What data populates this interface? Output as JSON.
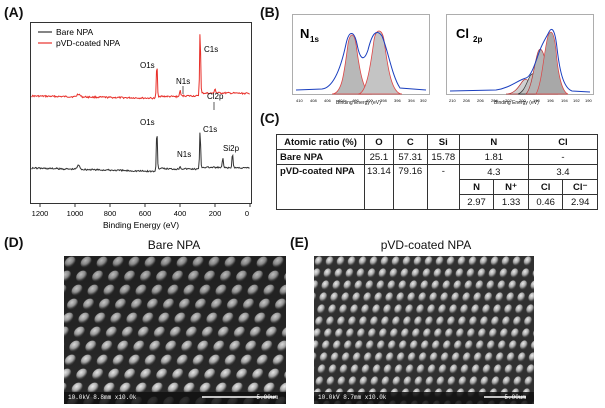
{
  "panels": {
    "a": "(A)",
    "b": "(B)",
    "c": "(C)",
    "d": "(D)",
    "e": "(E)"
  },
  "xps_survey": {
    "legend": [
      "Bare NPA",
      "pVD-coated NPA"
    ],
    "xlabel": "Binding Energy (eV)",
    "ticks": [
      "1200",
      "1000",
      "800",
      "600",
      "400",
      "200",
      "0"
    ],
    "red_peaks": [
      "O1s",
      "N1s",
      "C1s",
      "Cl2p"
    ],
    "black_peaks": [
      "O1s",
      "N1s",
      "C1s",
      "Si2p"
    ],
    "colors": {
      "bare": "#333333",
      "coated": "#e8302a"
    }
  },
  "chart_data": [
    {
      "type": "line",
      "title": "",
      "xlabel": "Binding Energy (eV)",
      "ylabel": "",
      "xlim": [
        1250,
        0
      ],
      "series": [
        {
          "name": "pVD-coated NPA",
          "peaks": {
            "O1s": 532,
            "N1s": 400,
            "C1s": 285,
            "Cl2p": 200
          }
        },
        {
          "name": "Bare NPA",
          "peaks": {
            "O1s": 532,
            "N1s": 400,
            "C1s": 285,
            "Si2p": 100
          }
        }
      ]
    },
    {
      "type": "line",
      "title": "N1s",
      "xlabel": "Binding Energy (eV)",
      "xlim": [
        410,
        392
      ],
      "ticks": [
        "410",
        "408",
        "406",
        "404",
        "402",
        "400",
        "398",
        "396",
        "394",
        "392"
      ],
      "components_eV": [
        401.5,
        399.2
      ]
    },
    {
      "type": "line",
      "title": "Cl2p",
      "xlabel": "Binding Energy (eV)",
      "xlim": [
        210,
        190
      ],
      "ticks": [
        "210",
        "208",
        "206",
        "204",
        "202",
        "200",
        "198",
        "196",
        "194",
        "192",
        "190"
      ],
      "components_eV": [
        201.5,
        199.8,
        198.0,
        196.6
      ]
    }
  ],
  "n1s_title": "N",
  "n1s_sub": "1s",
  "cl2p_title": "Cl",
  "cl2p_sub": "2p",
  "hr_xlabel": "Binding Energy (eV)",
  "table": {
    "header": [
      "Atomic ratio (%)",
      "O",
      "C",
      "Si",
      "N",
      "Cl"
    ],
    "rows": [
      [
        "Bare NPA",
        "25.1",
        "57.31",
        "15.78",
        "1.81",
        "-"
      ],
      [
        "pVD-coated NPA",
        "13.14",
        "79.16",
        "-",
        "4.3",
        "3.4"
      ]
    ],
    "sub_header": [
      "N",
      "N⁺",
      "Cl",
      "Cl⁻"
    ],
    "sub_values": [
      "2.97",
      "1.33",
      "0.46",
      "2.94"
    ]
  },
  "sem_left": {
    "title": "Bare NPA",
    "info": "10.0kV 8.8mm x10.0k",
    "scale": "5.00um"
  },
  "sem_right": {
    "title": "pVD-coated NPA",
    "info": "10.0kV 8.7mm x10.0k",
    "scale": "5.00um"
  }
}
